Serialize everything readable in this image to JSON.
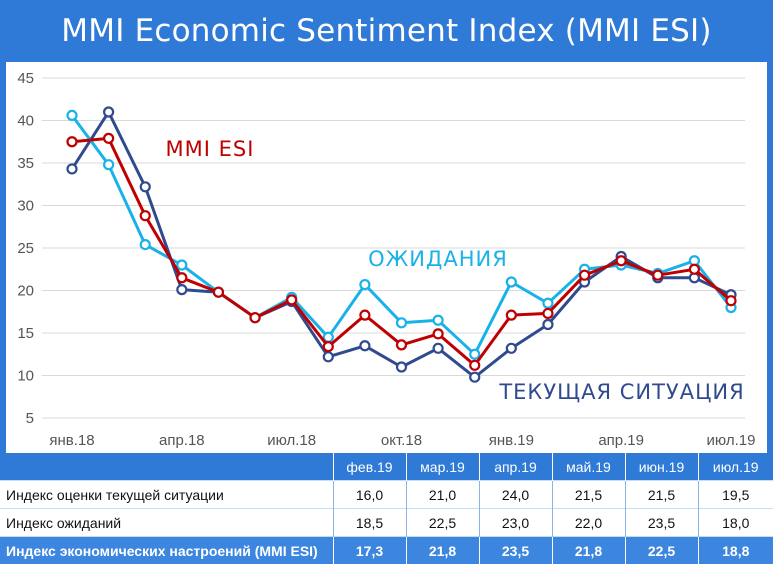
{
  "title": "MMI Economic Sentiment Index (MMI ESI)",
  "colors": {
    "esi": "#c00000",
    "expectations": "#19b2e8",
    "current": "#2f4a8e",
    "header_bg": "#2e7ad6"
  },
  "chart_data": {
    "type": "line",
    "title": "MMI Economic Sentiment Index (MMI ESI)",
    "ylim": [
      5,
      45
    ],
    "yticks": [
      "5",
      "10",
      "15",
      "20",
      "25",
      "30",
      "35",
      "40",
      "45"
    ],
    "xtick_labels": [
      {
        "index": 0,
        "label": "янв.18"
      },
      {
        "index": 3,
        "label": "апр.18"
      },
      {
        "index": 6,
        "label": "июл.18"
      },
      {
        "index": 9,
        "label": "окт.18"
      },
      {
        "index": 12,
        "label": "янв.19"
      },
      {
        "index": 15,
        "label": "апр.19"
      },
      {
        "index": 18,
        "label": "июл.19"
      }
    ],
    "grid": true,
    "series": [
      {
        "name": "ТЕКУЩАЯ СИТУАЦИЯ",
        "color": "#2f4a8e",
        "values": [
          34.3,
          41.0,
          32.2,
          20.1,
          19.8,
          16.8,
          18.7,
          12.2,
          13.5,
          11.0,
          13.2,
          9.8,
          13.2,
          16.0,
          21.0,
          24.0,
          21.5,
          21.5,
          19.5
        ]
      },
      {
        "name": "ОЖИДАНИЯ",
        "color": "#19b2e8",
        "values": [
          40.6,
          34.8,
          25.4,
          23.0,
          19.8,
          16.8,
          19.2,
          14.5,
          20.7,
          16.2,
          16.5,
          12.5,
          21.0,
          18.5,
          22.5,
          23.0,
          22.0,
          23.5,
          18.0
        ]
      },
      {
        "name": "MMI ESI",
        "color": "#c00000",
        "values": [
          37.5,
          37.9,
          28.8,
          21.5,
          19.8,
          16.8,
          18.9,
          13.4,
          17.1,
          13.6,
          14.9,
          11.2,
          17.1,
          17.3,
          21.8,
          23.5,
          21.8,
          22.5,
          18.8
        ]
      }
    ]
  },
  "table": {
    "headers": [
      "",
      "фев.19",
      "мар.19",
      "апр.19",
      "май.19",
      "июн.19",
      "июл.19"
    ],
    "rows": [
      {
        "label": "Индекс оценки текущей ситуации",
        "values": [
          "16,0",
          "21,0",
          "24,0",
          "21,5",
          "21,5",
          "19,5"
        ]
      },
      {
        "label": "Индекс ожиданий",
        "values": [
          "18,5",
          "22,5",
          "23,0",
          "22,0",
          "23,5",
          "18,0"
        ]
      },
      {
        "label": "Индекс экономических настроений (MMI ESI)",
        "values": [
          "17,3",
          "21,8",
          "23,5",
          "21,8",
          "22,5",
          "18,8"
        ]
      }
    ]
  }
}
